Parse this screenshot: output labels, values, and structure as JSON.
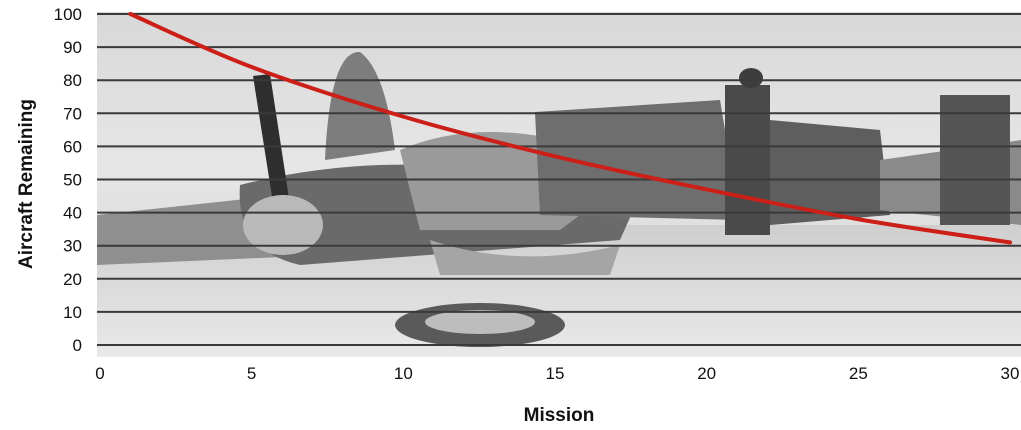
{
  "chart_data": {
    "type": "line",
    "title": "",
    "xlabel": "Mission",
    "ylabel": "Aircraft Remaining",
    "xlim": [
      0,
      30
    ],
    "ylim": [
      0,
      100
    ],
    "x_ticks": [
      "0",
      "5",
      "10",
      "15",
      "20",
      "25",
      "30"
    ],
    "y_ticks": [
      "0",
      "10",
      "20",
      "30",
      "40",
      "50",
      "60",
      "70",
      "80",
      "90",
      "100"
    ],
    "grid": "horizontal",
    "background": "black-and-white photograph of a crashed aircraft surrounded by soldiers",
    "series": [
      {
        "color": "#cc1f17",
        "x": [
          1,
          5,
          10,
          15,
          20,
          25,
          30
        ],
        "y": [
          100,
          84,
          69,
          57,
          47,
          38,
          31
        ]
      }
    ]
  },
  "colors": {
    "line": "#cc1f17",
    "gridline": "#3a3a3a",
    "axis_text": "#111111"
  }
}
